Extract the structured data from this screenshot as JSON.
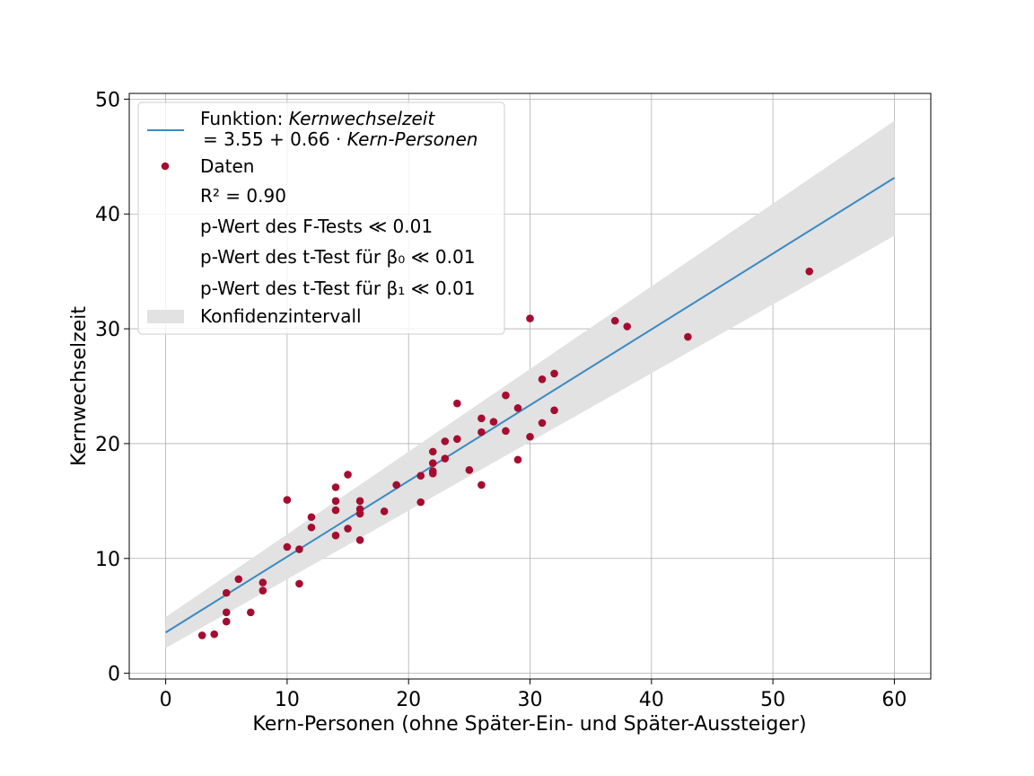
{
  "chart_data": {
    "type": "scatter",
    "xlabel": "Kern-Personen (ohne Später-Ein- und Später-Aussteiger)",
    "ylabel": "Kernwechselzeit",
    "xlim": [
      -3,
      63
    ],
    "ylim": [
      -0.5,
      50.5
    ],
    "x_ticks": [
      0,
      10,
      20,
      30,
      40,
      50,
      60
    ],
    "y_ticks": [
      0,
      10,
      20,
      30,
      40,
      50
    ],
    "grid": true,
    "legend_position": "top-left",
    "colors": {
      "data": "#a50d30",
      "fit": "#3a8ac2",
      "band": "#e2e2e2",
      "grid": "#b0b0b0"
    },
    "fit": {
      "intercept": 3.55,
      "slope": 0.66,
      "x_range": [
        0,
        60
      ]
    },
    "confidence_band": {
      "x": [
        0,
        60
      ],
      "lower": [
        2.2,
        38.1
      ],
      "upper": [
        4.9,
        48.1
      ]
    },
    "series": [
      {
        "name": "Daten",
        "points": [
          [
            3,
            3.3
          ],
          [
            4,
            3.4
          ],
          [
            5,
            7.0
          ],
          [
            5,
            5.3
          ],
          [
            5,
            4.5
          ],
          [
            6,
            8.2
          ],
          [
            7,
            5.3
          ],
          [
            8,
            7.9
          ],
          [
            8,
            7.2
          ],
          [
            10,
            15.1
          ],
          [
            10,
            11.0
          ],
          [
            11,
            10.8
          ],
          [
            11,
            7.8
          ],
          [
            12,
            13.6
          ],
          [
            12,
            12.7
          ],
          [
            14,
            16.2
          ],
          [
            14,
            15.0
          ],
          [
            14,
            14.2
          ],
          [
            14,
            12.0
          ],
          [
            15,
            17.3
          ],
          [
            15,
            12.6
          ],
          [
            16,
            15.0
          ],
          [
            16,
            14.3
          ],
          [
            16,
            13.9
          ],
          [
            16,
            11.6
          ],
          [
            18,
            14.1
          ],
          [
            19,
            16.4
          ],
          [
            21,
            17.2
          ],
          [
            21,
            14.9
          ],
          [
            22,
            19.3
          ],
          [
            22,
            18.3
          ],
          [
            22,
            17.6
          ],
          [
            22,
            17.4
          ],
          [
            23,
            20.2
          ],
          [
            23,
            18.7
          ],
          [
            24,
            23.5
          ],
          [
            24,
            20.4
          ],
          [
            25,
            17.7
          ],
          [
            26,
            22.2
          ],
          [
            26,
            21.0
          ],
          [
            26,
            16.4
          ],
          [
            27,
            21.9
          ],
          [
            28,
            24.2
          ],
          [
            28,
            21.1
          ],
          [
            29,
            23.1
          ],
          [
            29,
            18.6
          ],
          [
            30,
            30.9
          ],
          [
            30,
            20.6
          ],
          [
            31,
            25.6
          ],
          [
            31,
            21.8
          ],
          [
            32,
            26.1
          ],
          [
            32,
            22.9
          ],
          [
            37,
            30.7
          ],
          [
            38,
            30.2
          ],
          [
            43,
            29.3
          ],
          [
            53,
            35.0
          ]
        ]
      }
    ],
    "legend": {
      "fit_prefix": "Funktion: ",
      "fit_var": "Kernwechselzeit",
      "fit_eq": "= 3.55 + 0.66 · ",
      "fit_rhs_var": "Kern-Personen",
      "data_label": "Daten",
      "r2_label": "R² = 0.90",
      "f_test": "p-Wert des F-Tests  ≪ 0.01",
      "t_test_b0": "p-Wert des t-Test für β₀  ≪ 0.01",
      "t_test_b1": "p-Wert des t-Test für β₁  ≪ 0.01",
      "band_label": "Konfidenzintervall"
    }
  }
}
